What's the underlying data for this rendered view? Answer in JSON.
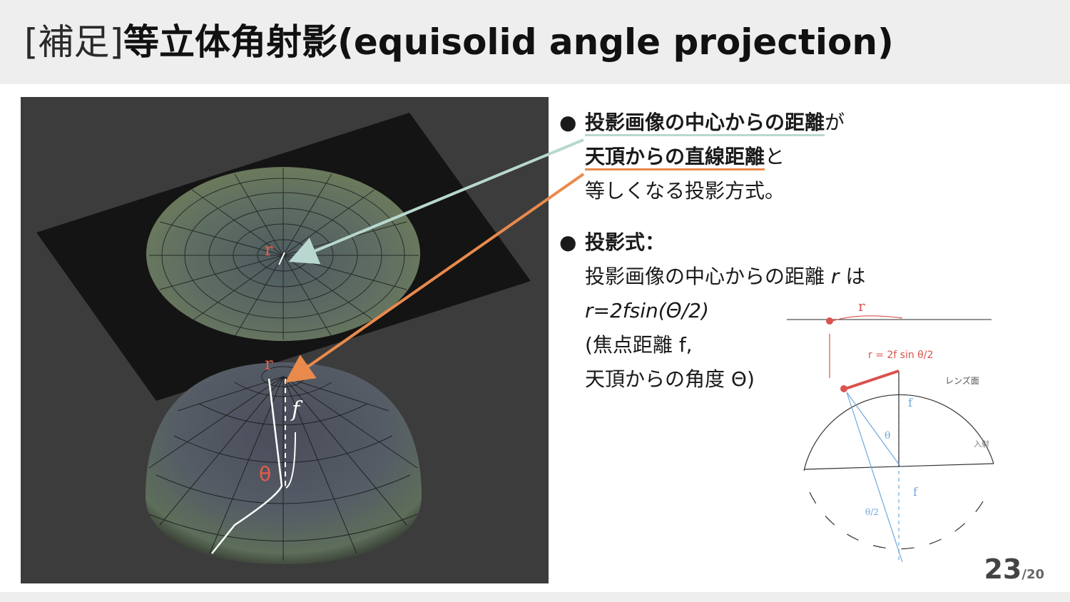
{
  "title": {
    "prefix": "[補足]",
    "main": "等立体角射影(equisolid angle projection)"
  },
  "bullets": {
    "b1": {
      "marker": "●",
      "hl1": "投影画像の中心からの距離",
      "t1": "が",
      "hl2": "天頂からの直線距離",
      "t2": "と",
      "line3": "等しくなる投影方式。"
    },
    "b2": {
      "marker": "●",
      "label": "投影式：",
      "line1_text": "投影画像の中心からの距離 ",
      "line1_var": "r",
      "line1_end": " は",
      "formula": "r=2fsin(Θ/2)",
      "note1": "(焦点距離 f,",
      "note2": " 天頂からの角度 Θ)"
    }
  },
  "figure_labels": {
    "r_top": "r",
    "r_bottom": "r",
    "f": "f",
    "theta": "θ"
  },
  "diagram_labels": {
    "r": "r",
    "formula": "r = 2f sin θ/2",
    "lens": "レンズ面",
    "incident": "入射",
    "f1": "f",
    "f2": "f",
    "theta": "θ",
    "half_theta": "θ/2"
  },
  "colors": {
    "arrow_green": "#b8d8cf",
    "arrow_orange": "#e98a4c",
    "red": "#d9534f",
    "blue": "#6fa8dc"
  },
  "page": {
    "current": "23",
    "total": "/20"
  }
}
